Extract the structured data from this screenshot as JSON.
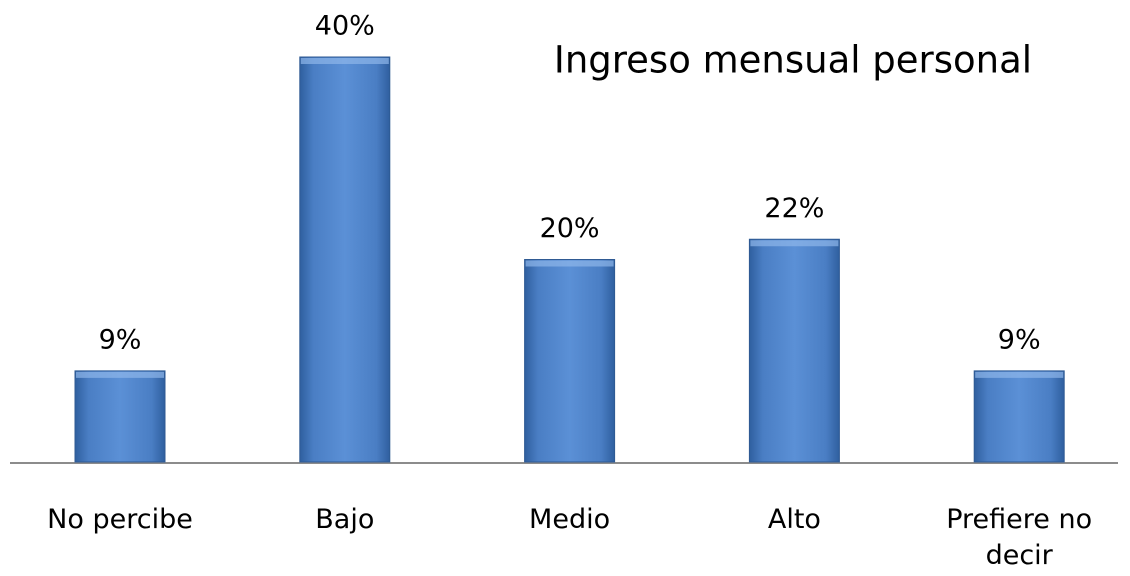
{
  "chart_data": {
    "type": "bar",
    "title": "Ingreso mensual personal",
    "categories": [
      "No percibe",
      "Bajo",
      "Medio",
      "Alto",
      "Prefiere no decir"
    ],
    "values": [
      9,
      40,
      20,
      22,
      9
    ],
    "value_labels": [
      "9%",
      "40%",
      "20%",
      "22%",
      "9%"
    ],
    "color": "#4a7ec4"
  }
}
